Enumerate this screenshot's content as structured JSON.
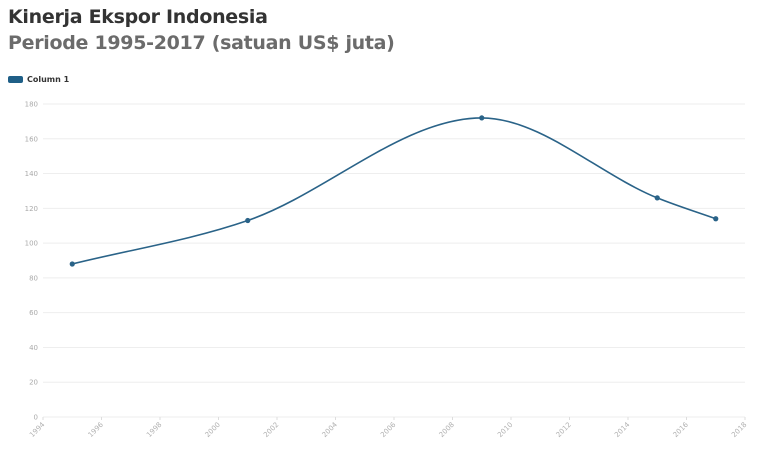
{
  "header": {
    "title": "Kinerja Ekspor Indonesia",
    "subtitle": "Periode 1995-2017 (satuan US$ juta)"
  },
  "legend": {
    "label": "Column 1",
    "color": "#1f5f87"
  },
  "colors": {
    "line": "#2a6388",
    "grid": "#eeeeee",
    "tick": "#aaaaaa"
  },
  "chart_data": {
    "type": "line",
    "title": "Kinerja Ekspor Indonesia",
    "subtitle": "Periode 1995-2017 (satuan US$ juta)",
    "xlabel": "",
    "ylabel": "",
    "x": [
      1995,
      2001,
      2009,
      2015,
      2017
    ],
    "series": [
      {
        "name": "Column 1",
        "values": [
          88,
          113,
          172,
          126,
          114
        ]
      }
    ],
    "xlim": [
      1994,
      2018
    ],
    "ylim": [
      0,
      180
    ],
    "xticks": [
      "1994",
      "1996",
      "1998",
      "2000",
      "2002",
      "2004",
      "2006",
      "2008",
      "2010",
      "2012",
      "2014",
      "2016",
      "2018"
    ],
    "yticks": [
      "0",
      "20",
      "40",
      "60",
      "80",
      "100",
      "120",
      "140",
      "160",
      "180"
    ],
    "grid": true,
    "smooth": true,
    "legend_position": "top-left"
  }
}
